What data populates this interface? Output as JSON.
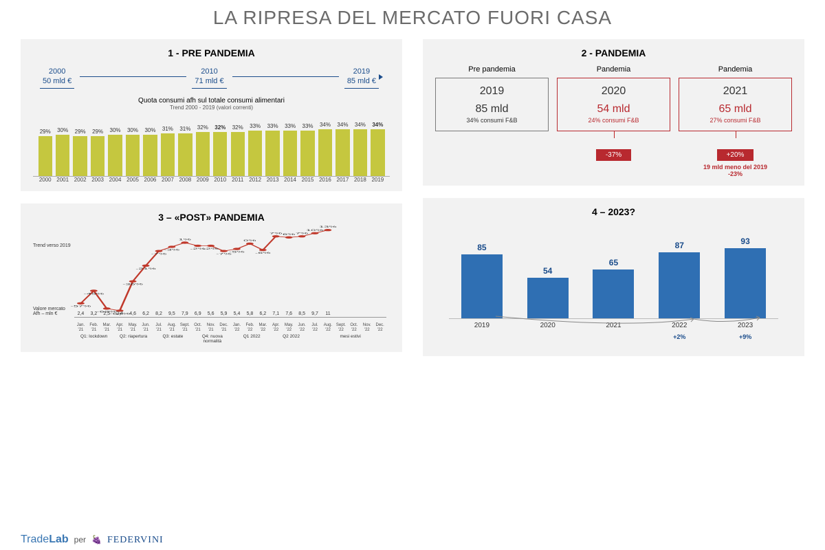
{
  "title": "LA RIPRESA DEL MERCATO FUORI CASA",
  "colors": {
    "panel_bg": "#f2f2f2",
    "blue": "#1a4c8b",
    "blue_bar": "#2f6fb3",
    "olive": "#c5c73f",
    "red": "#b8292f",
    "red_bar": "#c0392b",
    "text_grey": "#6b6b6b"
  },
  "panel1": {
    "title": "1  - PRE PANDEMIA",
    "milestones": [
      {
        "year": "2000",
        "value": "50 mld €"
      },
      {
        "year": "2010",
        "value": "71 mld €"
      },
      {
        "year": "2019",
        "value": "85 mld €"
      }
    ],
    "subtitle": "Quota consumi afh sul totale consumi alimentari",
    "subnote": "Trend 2000 - 2019 (valori correnti)",
    "chart": {
      "type": "bar",
      "bar_color": "#c5c73f",
      "ylim_pct": 40,
      "years": [
        "2000",
        "2001",
        "2002",
        "2003",
        "2004",
        "2005",
        "2006",
        "2007",
        "2008",
        "2009",
        "2010",
        "2011",
        "2012",
        "2013",
        "2014",
        "2015",
        "2016",
        "2017",
        "2018",
        "2019"
      ],
      "values_pct": [
        29,
        30,
        29,
        29,
        30,
        30,
        30,
        31,
        31,
        32,
        32,
        32,
        33,
        33,
        33,
        33,
        34,
        34,
        34,
        34
      ],
      "bold_idx": [
        10,
        19
      ]
    }
  },
  "panel2": {
    "title": "2 - PANDEMIA",
    "cols": [
      {
        "label": "Pre pandemia",
        "year": "2019",
        "value": "85 mld",
        "sub": "34% consumi F&B",
        "border": "#7a7a7a",
        "fg": "#333333",
        "badge": null,
        "note": null
      },
      {
        "label": "Pandemia",
        "year": "2020",
        "value": "54 mld",
        "sub": "24% consumi F&B",
        "border": "#b8292f",
        "fg": "#b8292f",
        "badge": "-37%",
        "note": null
      },
      {
        "label": "Pandemia",
        "year": "2021",
        "value": "65 mld",
        "sub": "27% consumi F&B",
        "border": "#b8292f",
        "fg": "#b8292f",
        "badge": "+20%",
        "note": "19 mld meno del 2019\n-23%"
      }
    ],
    "badge_bg": "#b8292f"
  },
  "panel3": {
    "title": "3 – «POST» PANDEMIA",
    "left_label_trend": "Trend verso 2019",
    "left_label_value": "Valore mercato Afh – mln €",
    "line_color": "#c0392b",
    "bar_blue": "#2f6fb3",
    "bar_red": "#c0392b",
    "y_bar_max": 12,
    "months": [
      "Jan. '21",
      "Feb. '21",
      "Mar. '21",
      "Apr. '21",
      "May. '21",
      "Jun. '21",
      "Jul. '21",
      "Aug. '21",
      "Sept. '21",
      "Oct. '21",
      "Nov. '21",
      "Dec. '21",
      "Jan. '22",
      "Feb. '22",
      "Mar. '22",
      "Apr. '22",
      "May. '22",
      "Jun. '22",
      "Jul. '22",
      "Aug. '22",
      "Sept. '22",
      "Oct. '22",
      "Nov. '22",
      "Dec. '22"
    ],
    "bar_values": [
      2.4,
      3.2,
      2.5,
      2.4,
      4.6,
      6.2,
      8.2,
      9.5,
      7.9,
      6.9,
      5.6,
      5.9,
      5.4,
      5.8,
      6.2,
      7.1,
      7.6,
      8.5,
      9.7,
      11.0,
      null,
      null,
      null,
      null
    ],
    "bar_blue_count": 12,
    "trend_pct": [
      -57,
      -45,
      -62,
      -64,
      -36,
      -21,
      -7,
      -3,
      1,
      -2,
      -2,
      -7,
      -5,
      0,
      -6,
      7,
      6,
      7,
      10,
      13
    ],
    "trend_y_min": -70,
    "trend_y_max": 20,
    "periods": [
      {
        "label": "Q1: lockdown",
        "span": 3
      },
      {
        "label": "Q2: riapertura",
        "span": 3
      },
      {
        "label": "Q3: estate",
        "span": 3
      },
      {
        "label": "Q4: nuova normalità",
        "span": 3
      },
      {
        "label": "Q1 2022",
        "span": 3
      },
      {
        "label": "Q2 2022",
        "span": 3
      },
      {
        "label": "mesi estivi",
        "span": 6
      }
    ]
  },
  "panel4": {
    "title": "4 – 2023?",
    "bar_color": "#2f6fb3",
    "y_max": 100,
    "years": [
      "2019",
      "2020",
      "2021",
      "2022",
      "2023"
    ],
    "values": [
      85,
      54,
      65,
      87,
      93
    ],
    "annotations": [
      "",
      "",
      "",
      "+2%",
      "+9%"
    ]
  },
  "footer": {
    "logo1_a": "Trade",
    "logo1_b": "Lab",
    "per": "per",
    "logo2": "FEDERVINI"
  }
}
